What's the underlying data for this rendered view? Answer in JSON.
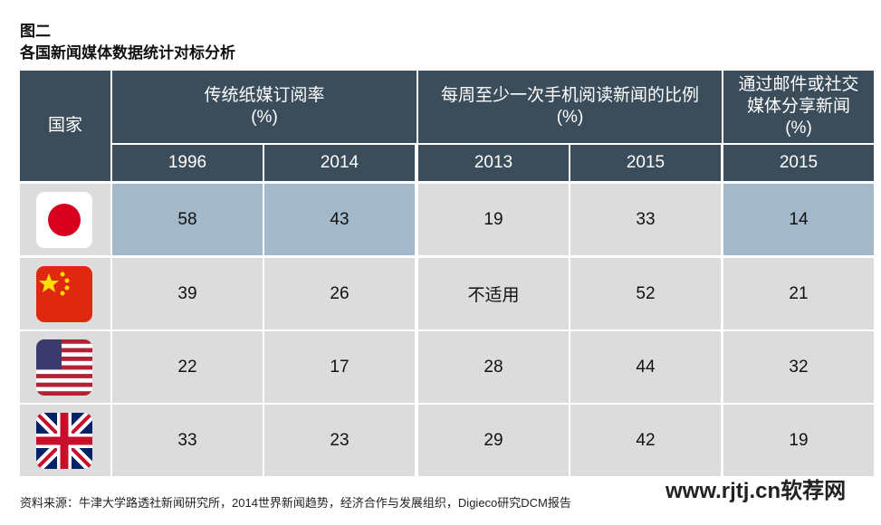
{
  "header": {
    "figure": "图二",
    "title": "各国新闻媒体数据统计对标分析"
  },
  "table": {
    "country_header": "国家",
    "groups": [
      {
        "title": "传统纸媒订阅率",
        "unit": "(%)"
      },
      {
        "title": "每周至少一次手机阅读新闻的比例",
        "unit": "(%)"
      },
      {
        "title": "通过邮件或社交媒体分享新闻",
        "unit": "(%)"
      }
    ],
    "years": [
      "1996",
      "2014",
      "2013",
      "2015",
      "2015"
    ],
    "rows": [
      [
        "58",
        "43",
        "19",
        "33",
        "14"
      ],
      [
        "39",
        "26",
        "不适用",
        "52",
        "21"
      ],
      [
        "22",
        "17",
        "28",
        "44",
        "32"
      ],
      [
        "33",
        "23",
        "29",
        "42",
        "19"
      ]
    ]
  },
  "source": "资料来源：牛津大学路透社新闻研究所，2014世界新闻趋势，经济合作与发展组织，Digieco研究DCM报告",
  "watermark": "www.rjtj.cn软荐网"
}
